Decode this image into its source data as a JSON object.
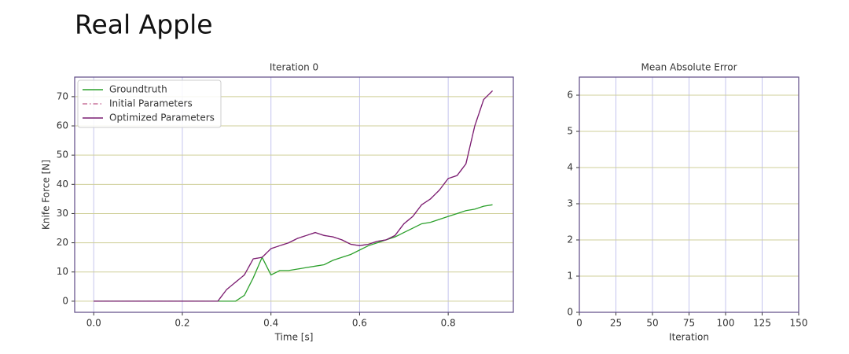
{
  "title": "Real Apple",
  "chart_data": [
    {
      "type": "line",
      "title": "Iteration 0",
      "xlabel": "Time [s]",
      "ylabel": "Knife Force [N]",
      "x": [
        0,
        0.02,
        0.04,
        0.06,
        0.08,
        0.1,
        0.12,
        0.14,
        0.16,
        0.18,
        0.2,
        0.22,
        0.24,
        0.26,
        0.28,
        0.3,
        0.32,
        0.34,
        0.36,
        0.38,
        0.4,
        0.42,
        0.44,
        0.46,
        0.48,
        0.5,
        0.52,
        0.54,
        0.56,
        0.58,
        0.6,
        0.62,
        0.64,
        0.66,
        0.68,
        0.7,
        0.72,
        0.74,
        0.76,
        0.78,
        0.8,
        0.82,
        0.84,
        0.86,
        0.88,
        0.9
      ],
      "series": [
        {
          "name": "Groundtruth",
          "color": "#2ca02c",
          "style": "solid",
          "values": [
            0,
            0,
            0,
            0,
            0,
            0,
            0,
            0,
            0,
            0,
            0,
            0,
            0,
            0,
            0,
            0,
            0,
            2,
            8,
            15,
            9,
            10.5,
            10.5,
            11,
            11.5,
            12,
            12.5,
            14,
            15,
            16,
            17.5,
            19,
            20,
            21,
            22,
            23.5,
            25,
            26.5,
            27,
            28,
            29,
            30,
            31,
            31.5,
            32.5,
            33
          ]
        },
        {
          "name": "Initial Parameters",
          "color": "#c9739b",
          "style": "dashdot",
          "values": [
            0,
            0,
            0,
            0,
            0,
            0,
            0,
            0,
            0,
            0,
            0,
            0,
            0,
            0,
            0,
            4,
            6.5,
            9,
            14.5,
            15,
            18,
            19,
            20,
            21.5,
            22.5,
            23.5,
            22.5,
            22,
            21,
            19.5,
            19,
            19.5,
            20.5,
            21,
            22.5,
            26.5,
            29,
            33,
            35,
            38,
            42,
            43,
            47,
            60,
            69,
            72
          ]
        },
        {
          "name": "Optimized Parameters",
          "color": "#7b1f73",
          "style": "solid",
          "values": [
            0,
            0,
            0,
            0,
            0,
            0,
            0,
            0,
            0,
            0,
            0,
            0,
            0,
            0,
            0,
            4,
            6.5,
            9,
            14.5,
            15,
            18,
            19,
            20,
            21.5,
            22.5,
            23.5,
            22.5,
            22,
            21,
            19.5,
            19,
            19.5,
            20.5,
            21,
            22.5,
            26.5,
            29,
            33,
            35,
            38,
            42,
            43,
            47,
            60,
            69,
            72
          ]
        }
      ],
      "xlim": [
        -0.043,
        0.947
      ],
      "ylim": [
        -3.8,
        76.7
      ],
      "xticks": [
        {
          "value": 0,
          "label": "0.0"
        },
        {
          "value": 0.2,
          "label": "0.2"
        },
        {
          "value": 0.4,
          "label": "0.4"
        },
        {
          "value": 0.6,
          "label": "0.6"
        },
        {
          "value": 0.8,
          "label": "0.8"
        }
      ],
      "yticks": [
        0,
        10,
        20,
        30,
        40,
        50,
        60,
        70
      ],
      "grid": true,
      "legend": "upper left"
    },
    {
      "type": "line",
      "title": "Mean Absolute Error",
      "xlabel": "Iteration",
      "x": [],
      "series": [],
      "xlim": [
        0,
        150
      ],
      "ylim": [
        0,
        6.5
      ],
      "xticks": [
        0,
        25,
        50,
        75,
        100,
        125,
        150
      ],
      "yticks": [
        0,
        1,
        2,
        3,
        4,
        5,
        6
      ],
      "grid": true
    }
  ]
}
